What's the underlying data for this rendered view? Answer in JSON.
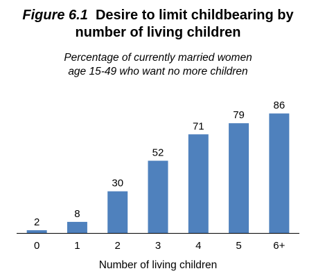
{
  "figure": {
    "number": "Figure 6.1",
    "title_line1": "Desire to limit childbearing by",
    "title_line2": "number of living children",
    "subtitle_line1": "Percentage of currently married women",
    "subtitle_line2": "age 15-49 who want no more children"
  },
  "chart_data": {
    "type": "bar",
    "categories": [
      "0",
      "1",
      "2",
      "3",
      "4",
      "5",
      "6+"
    ],
    "values": [
      2,
      8,
      30,
      52,
      71,
      79,
      86
    ],
    "data_labels": [
      "2",
      "8",
      "30",
      "52",
      "71",
      "79",
      "86"
    ],
    "title": "Desire to limit childbearing by number of living children",
    "xlabel": "Number of living children",
    "ylabel": "",
    "ylim": [
      0,
      100
    ],
    "grid": false,
    "legend": "none",
    "bar_color": "#4F81BD"
  }
}
